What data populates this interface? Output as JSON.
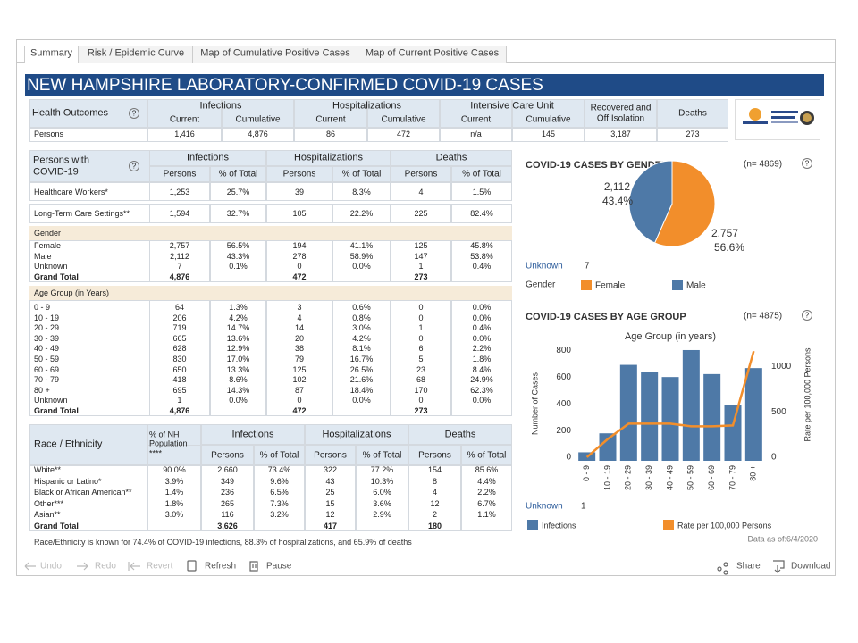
{
  "tabs": [
    "Summary",
    "Risk / Epidemic Curve",
    "Map of Cumulative Positive Cases",
    "Map of Current Positive Cases"
  ],
  "title": "NEW HAMPSHIRE LABORATORY-CONFIRMED COVID-19 CASES",
  "help_icon": "?",
  "outcomes_table": {
    "title": "Health Outcomes",
    "groups": [
      {
        "name": "Infections",
        "columns": [
          "Current",
          "Cumulative"
        ]
      },
      {
        "name": "Hospitalizations",
        "columns": [
          "Current",
          "Cumulative"
        ]
      },
      {
        "name": "Intensive Care Unit",
        "columns": [
          "Current",
          "Cumulative"
        ]
      },
      {
        "name": "Recovered and Off Isolation"
      },
      {
        "name": "Deaths"
      }
    ],
    "row": {
      "label": "Persons",
      "cells": [
        "1,416",
        "4,876",
        "86",
        "472",
        "n/a",
        "145",
        "3,187",
        "273"
      ]
    }
  },
  "persons_table": {
    "title": "Persons with COVID-19",
    "groups": [
      "Infections",
      "Hospitalizations",
      "Deaths"
    ],
    "subheaders": [
      "Persons",
      "% of Total"
    ],
    "settings_rows": [
      {
        "label": "Healthcare Workers*",
        "cells": [
          "1,253",
          "25.7%",
          "39",
          "8.3%",
          "4",
          "1.5%"
        ]
      },
      {
        "label": "Long-Term Care Settings**",
        "cells": [
          "1,594",
          "32.7%",
          "105",
          "22.2%",
          "225",
          "82.4%"
        ]
      }
    ],
    "sections": [
      {
        "title": "Gender",
        "rows": [
          {
            "label": "Female",
            "cells": [
              "2,757",
              "56.5%",
              "194",
              "41.1%",
              "125",
              "45.8%"
            ]
          },
          {
            "label": "Male",
            "cells": [
              "2,112",
              "43.3%",
              "278",
              "58.9%",
              "147",
              "53.8%"
            ]
          },
          {
            "label": "Unknown",
            "cells": [
              "7",
              "0.1%",
              "0",
              "0.0%",
              "1",
              "0.4%"
            ]
          },
          {
            "label": "Grand Total",
            "cells": [
              "4,876",
              null,
              "472",
              null,
              "273",
              null
            ]
          }
        ]
      },
      {
        "title": "Age Group (in Years)",
        "rows": [
          {
            "label": "0 - 9",
            "cells": [
              "64",
              "1.3%",
              "3",
              "0.6%",
              "0",
              "0.0%"
            ]
          },
          {
            "label": "10 - 19",
            "cells": [
              "206",
              "4.2%",
              "4",
              "0.8%",
              "0",
              "0.0%"
            ]
          },
          {
            "label": "20 - 29",
            "cells": [
              "719",
              "14.7%",
              "14",
              "3.0%",
              "1",
              "0.4%"
            ]
          },
          {
            "label": "30 - 39",
            "cells": [
              "665",
              "13.6%",
              "20",
              "4.2%",
              "0",
              "0.0%"
            ]
          },
          {
            "label": "40 - 49",
            "cells": [
              "628",
              "12.9%",
              "38",
              "8.1%",
              "6",
              "2.2%"
            ]
          },
          {
            "label": "50 - 59",
            "cells": [
              "830",
              "17.0%",
              "79",
              "16.7%",
              "5",
              "1.8%"
            ]
          },
          {
            "label": "60 - 69",
            "cells": [
              "650",
              "13.3%",
              "125",
              "26.5%",
              "23",
              "8.4%"
            ]
          },
          {
            "label": "70 - 79",
            "cells": [
              "418",
              "8.6%",
              "102",
              "21.6%",
              "68",
              "24.9%"
            ]
          },
          {
            "label": "80 +",
            "cells": [
              "695",
              "14.3%",
              "87",
              "18.4%",
              "170",
              "62.3%"
            ]
          },
          {
            "label": "Unknown",
            "cells": [
              "1",
              "0.0%",
              "0",
              "0.0%",
              "0",
              "0.0%"
            ]
          },
          {
            "label": "Grand Total",
            "cells": [
              "4,876",
              null,
              "472",
              null,
              "273",
              null
            ]
          }
        ]
      }
    ]
  },
  "race_table": {
    "title": "Race / Ethnicity",
    "population_header": "% of NH Population ****",
    "groups": [
      "Infections",
      "Hospitalizations",
      "Deaths"
    ],
    "subheaders": [
      "Persons",
      "% of Total"
    ],
    "rows": [
      {
        "label": "White**",
        "cells": [
          "90.0%",
          "2,660",
          "73.4%",
          "322",
          "77.2%",
          "154",
          "85.6%"
        ]
      },
      {
        "label": "Hispanic or Latino*",
        "cells": [
          "3.9%",
          "349",
          "9.6%",
          "43",
          "10.3%",
          "8",
          "4.4%"
        ]
      },
      {
        "label": "Black or African American**",
        "cells": [
          "1.4%",
          "236",
          "6.5%",
          "25",
          "6.0%",
          "4",
          "2.2%"
        ]
      },
      {
        "label": "Other***",
        "cells": [
          "1.8%",
          "265",
          "7.3%",
          "15",
          "3.6%",
          "12",
          "6.7%"
        ]
      },
      {
        "label": "Asian**",
        "cells": [
          "3.0%",
          "116",
          "3.2%",
          "12",
          "2.9%",
          "2",
          "1.1%"
        ]
      },
      {
        "label": "Grand Total",
        "cells": [
          null,
          "3,626",
          null,
          "417",
          null,
          "180",
          null
        ]
      }
    ],
    "note": "Race/Ethnicity is known for 74.4% of COVID-19 infections, 88.3% of hospitalizations, and 65.9% of deaths"
  },
  "toolbar": [
    "Undo",
    "Redo",
    "Revert",
    "Refresh",
    "Pause",
    "Share",
    "Download"
  ],
  "chart_data": [
    {
      "type": "pie",
      "title": "COVID-19 CASES BY GENDER",
      "n_label": "(n= 4869)",
      "categories": [
        "Female",
        "Male"
      ],
      "colors": [
        "#f28e2b",
        "#4e79a7"
      ],
      "values": [
        2757,
        2112
      ],
      "value_labels": [
        "2,757",
        "2,112"
      ],
      "percents": [
        56.6,
        43.4
      ],
      "percent_labels": [
        "56.6%",
        "43.4%"
      ],
      "unknown_label": "Unknown",
      "unknown_value": 7,
      "legend_title": "Gender"
    },
    {
      "type": "bar",
      "title": "COVID-19 CASES BY AGE GROUP",
      "n_label": "(n= 4875)",
      "x_title": "Age Group (in years)",
      "y_title": "Number of Cases",
      "y2_title": "Rate per 100,000 Persons",
      "categories": [
        "0 - 9",
        "10 - 19",
        "20 - 29",
        "30 - 39",
        "40 - 49",
        "50 - 59",
        "60 - 69",
        "70 - 79",
        "80 +"
      ],
      "series": [
        {
          "name": "Infections",
          "color": "#4e79a7",
          "values": [
            64,
            206,
            719,
            665,
            628,
            830,
            650,
            418,
            695
          ]
        },
        {
          "name": "Rate per 100,000 Persons",
          "type": "line",
          "axis": "y2",
          "color": "#f28e2b",
          "values": [
            40,
            240,
            410,
            410,
            410,
            380,
            380,
            390,
            1210
          ]
        }
      ],
      "ylim": [
        0,
        870
      ],
      "yticks": [
        0,
        200,
        400,
        600,
        800
      ],
      "y2lim": [
        0,
        1280
      ],
      "y2ticks": [
        0,
        500,
        1000
      ],
      "unknown_label": "Unknown",
      "unknown_value": 1,
      "footnote": "Data as of:6/4/2020"
    }
  ]
}
